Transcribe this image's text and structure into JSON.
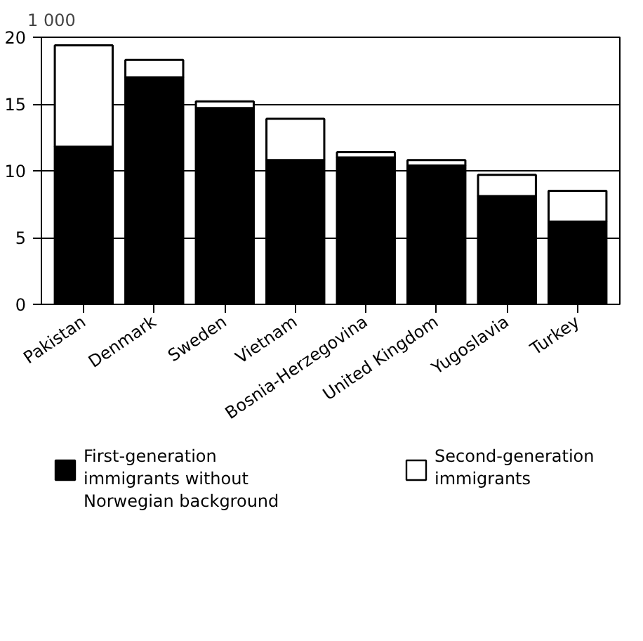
{
  "chart_data": {
    "type": "bar",
    "stacked": true,
    "ylabel": "1 000",
    "categories": [
      "Pakistan",
      "Denmark",
      "Sweden",
      "Vietnam",
      "Bosnia-Herzegovina",
      "United Kingdom",
      "Yugoslavia",
      "Turkey"
    ],
    "series": [
      {
        "name": "First-generation immigrants without Norwegian background",
        "color": "#000000",
        "values": [
          11.8,
          17.0,
          14.7,
          10.8,
          11.0,
          10.4,
          8.1,
          6.2
        ]
      },
      {
        "name": "Second-generation immigrants",
        "color": "#ffffff",
        "values": [
          7.6,
          1.3,
          0.5,
          3.1,
          0.4,
          0.4,
          1.6,
          2.3
        ]
      }
    ],
    "ylim": [
      0,
      20
    ],
    "yticks": [
      0,
      5,
      10,
      15,
      20
    ],
    "grid": "y",
    "legend": "bottom"
  }
}
